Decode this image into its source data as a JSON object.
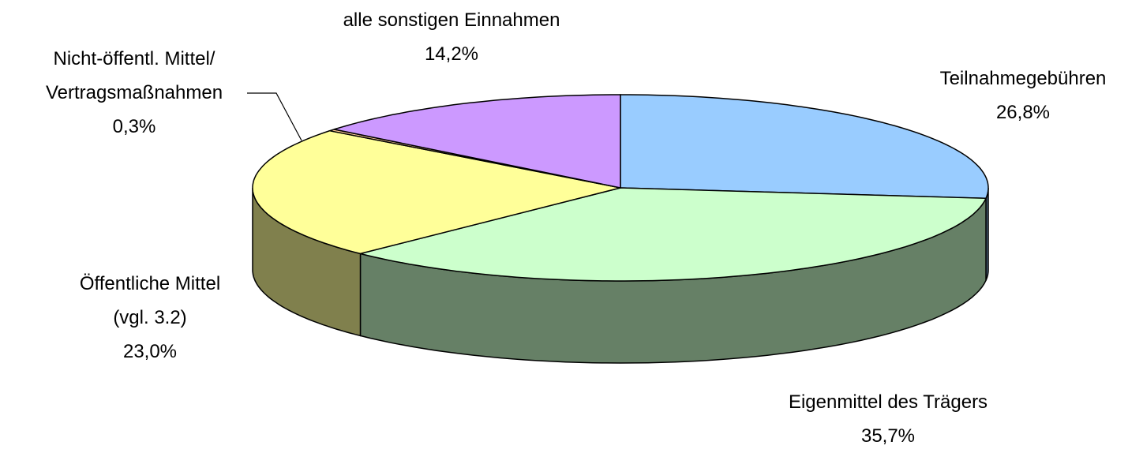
{
  "chart_data": {
    "type": "pie3d",
    "categories": [
      "Teilnahmegebühren",
      "Eigenmittel des Trägers",
      "Öffentliche Mittel\n(vgl. 3.2)",
      "Nicht-öffentl. Mittel/\nVertragsmaßnahmen",
      "alle sonstigen Einnahmen"
    ],
    "values": [
      26.8,
      35.7,
      23.0,
      0.3,
      14.2
    ],
    "value_labels": [
      "26,8%",
      "35,7%",
      "23,0%",
      "0,3%",
      "14,2%"
    ],
    "colors": [
      "#99ccff",
      "#ccffcc",
      "#ffff99",
      "#ffcc99",
      "#cc99ff"
    ]
  }
}
